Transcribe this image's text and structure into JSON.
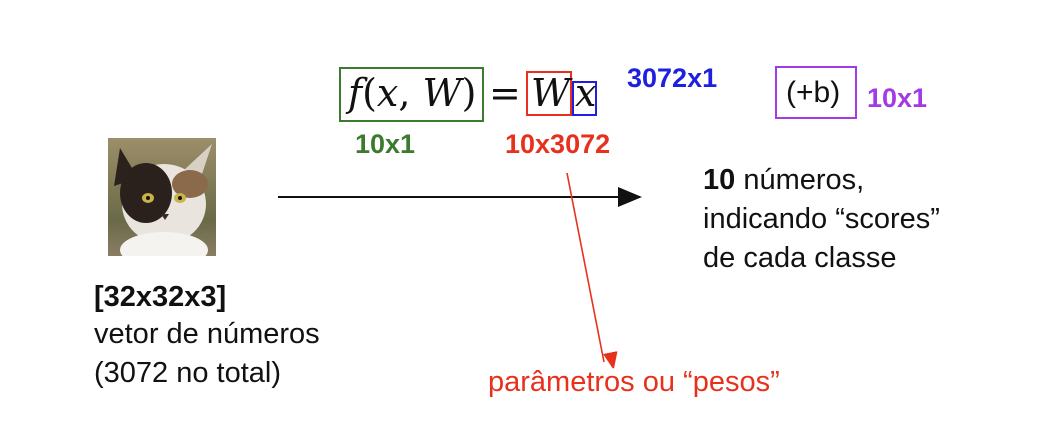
{
  "formula": {
    "f": "f",
    "paren_open": "(",
    "x": "x",
    "comma": ",",
    "W": "W",
    "paren_close": ")",
    "equals": "=",
    "W_term": "W",
    "x_term": "x"
  },
  "dims": {
    "x_dim": "3072x1",
    "b_term": "(+b)",
    "b_dim": "10x1",
    "f_dim": "10x1",
    "W_dim": "10x3072"
  },
  "image_label": {
    "size": "[32x32x3]",
    "line1": "vetor de números",
    "line2": "(3072 no total)"
  },
  "output": {
    "bold": "10",
    "line1_rest": " números,",
    "line2": "indicando “scores”",
    "line3": "de cada classe"
  },
  "params_label": "parâmetros ou “pesos”",
  "colors": {
    "green": "#3c7a2e",
    "red": "#e8311d",
    "blue": "#1d20e0",
    "purple": "#a33ae6"
  }
}
